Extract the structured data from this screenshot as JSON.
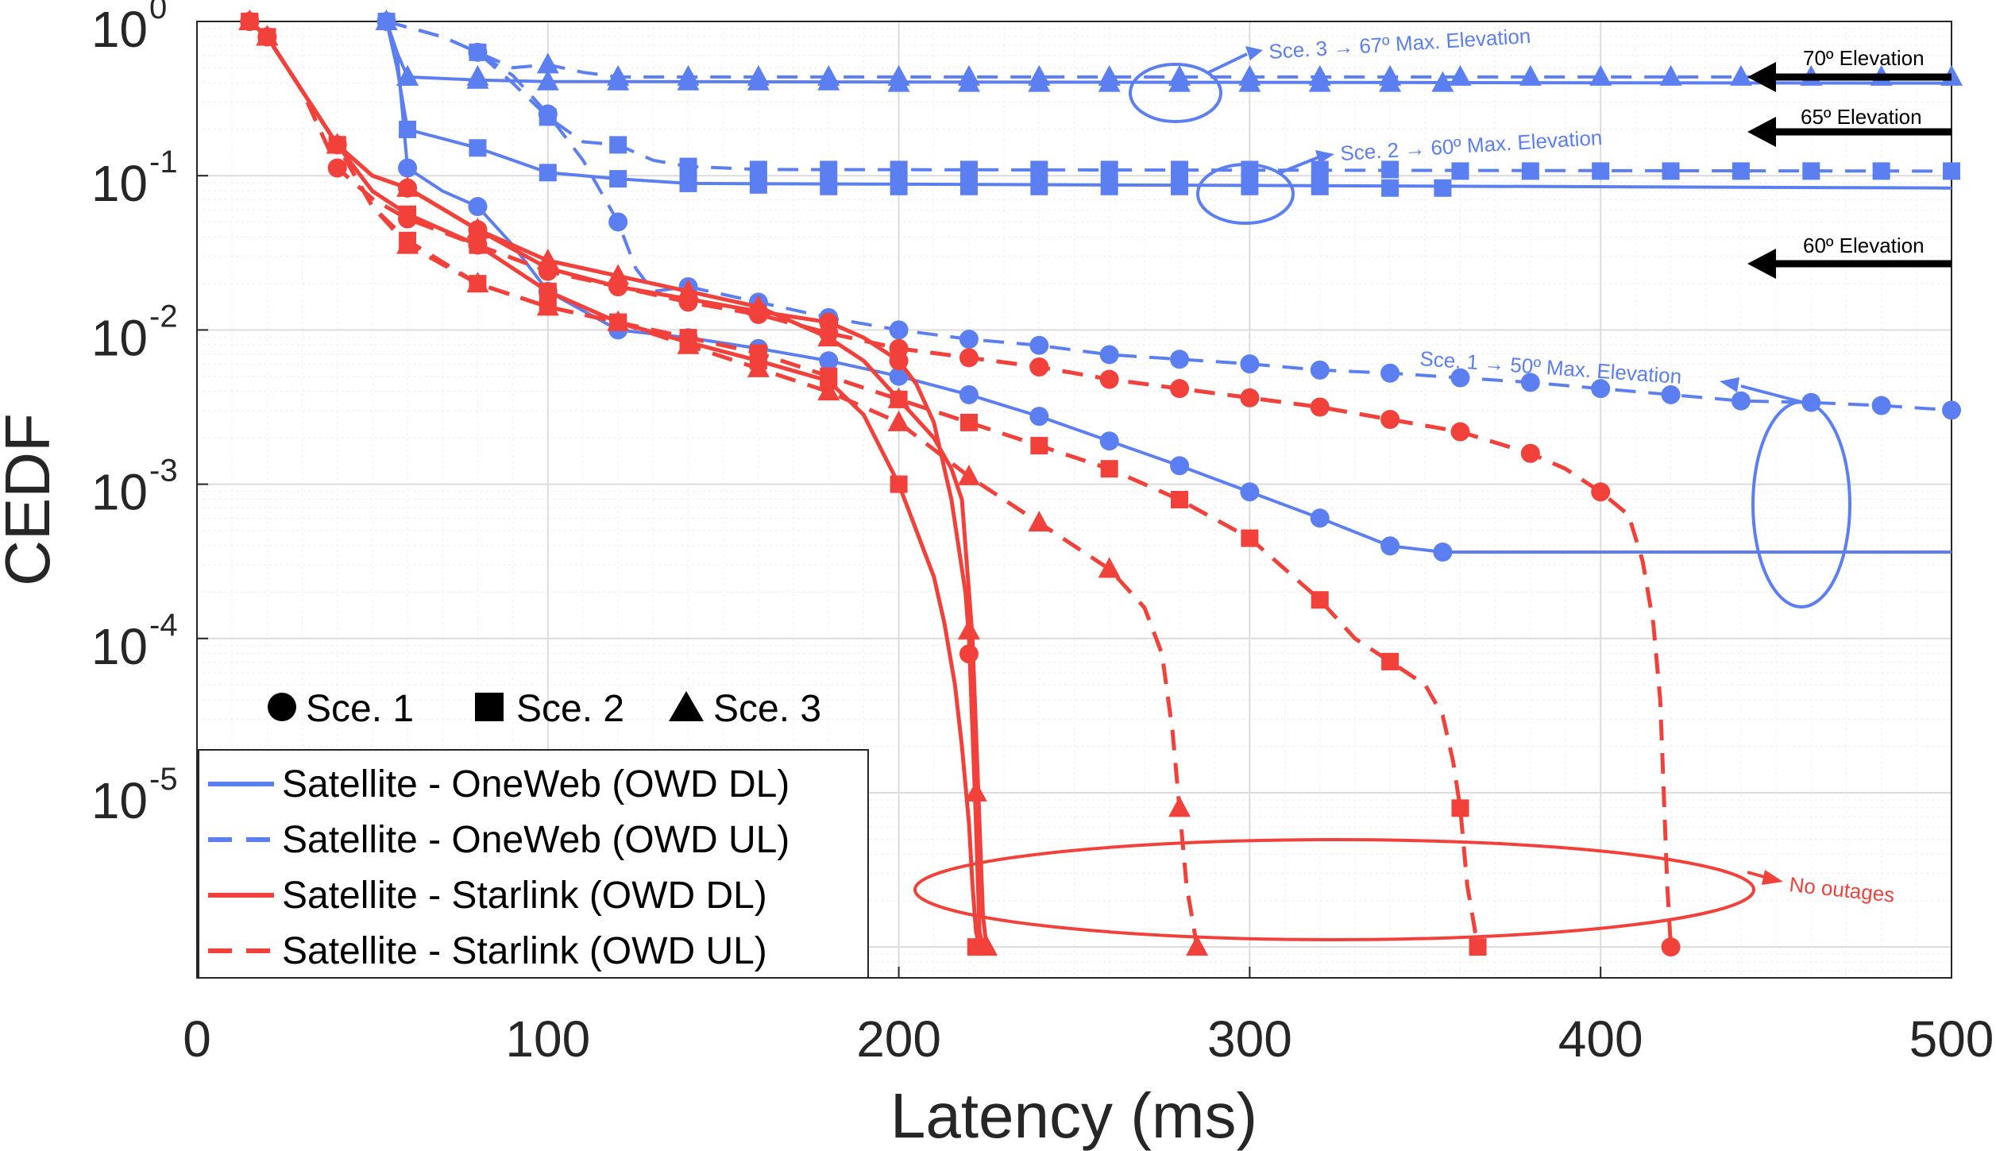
{
  "chart_data": {
    "type": "line",
    "xlabel": "Latency (ms)",
    "ylabel": "CEDF",
    "xlim": [
      0,
      500
    ],
    "ylim_log10": [
      -6.2,
      0
    ],
    "y_scale": "log",
    "xticks": [
      0,
      100,
      200,
      300,
      400,
      500
    ],
    "xtick_labels": [
      "0",
      "100",
      "200",
      "300",
      "400",
      "500"
    ],
    "yticks": [
      {
        "base": "10",
        "exp": "0",
        "value": 0
      },
      {
        "base": "10",
        "exp": "-1",
        "value": -1
      },
      {
        "base": "10",
        "exp": "-2",
        "value": -2
      },
      {
        "base": "10",
        "exp": "-3",
        "value": -3
      },
      {
        "base": "10",
        "exp": "-4",
        "value": -4
      },
      {
        "base": "10",
        "exp": "-5",
        "value": -5
      }
    ],
    "grid": true,
    "colors": {
      "oneweb": "#5b7ff0",
      "starlink": "#f2413a",
      "annotation": "#000000"
    },
    "legend": {
      "position": "bottom-left",
      "entries": [
        {
          "label": "Satellite - OneWeb (OWD DL)",
          "color": "#5b7ff0",
          "dash": "solid"
        },
        {
          "label": "Satellite - OneWeb (OWD UL)",
          "color": "#5b7ff0",
          "dash": "dashed"
        },
        {
          "label": "Satellite - Starlink (OWD DL)",
          "color": "#f2413a",
          "dash": "solid"
        },
        {
          "label": "Satellite - Starlink (OWD UL)",
          "color": "#f2413a",
          "dash": "dashed"
        }
      ]
    },
    "marker_legend": [
      {
        "marker": "circle",
        "label": "Sce. 1"
      },
      {
        "marker": "square",
        "label": "Sce. 2"
      },
      {
        "marker": "triangle",
        "label": "Sce. 3"
      }
    ],
    "series": [
      {
        "name": "OneWeb DL Sce. 1",
        "operator": "oneweb",
        "dash": "solid",
        "marker": "circle",
        "width": 4,
        "x": [
          54,
          57,
          60,
          70,
          80,
          90,
          100,
          120,
          140,
          160,
          180,
          200,
          220,
          240,
          260,
          280,
          300,
          320,
          340,
          355,
          500
        ],
        "y": [
          0,
          -0.2,
          -0.95,
          -1.1,
          -1.2,
          -1.45,
          -1.75,
          -2.0,
          -2.05,
          -2.12,
          -2.2,
          -2.3,
          -2.42,
          -2.56,
          -2.72,
          -2.88,
          -3.05,
          -3.22,
          -3.4,
          -3.44,
          -3.44
        ],
        "mx": [
          60,
          80,
          100,
          120,
          140,
          160,
          180,
          200,
          220,
          240,
          260,
          280,
          300,
          320,
          340,
          355
        ],
        "my": [
          -0.95,
          -1.2,
          -1.75,
          -2.0,
          -2.05,
          -2.12,
          -2.2,
          -2.3,
          -2.42,
          -2.56,
          -2.72,
          -2.88,
          -3.05,
          -3.22,
          -3.4,
          -3.44
        ]
      },
      {
        "name": "OneWeb DL Sce. 2",
        "operator": "oneweb",
        "dash": "solid",
        "marker": "square",
        "width": 4,
        "x": [
          54,
          57,
          60,
          80,
          100,
          120,
          140,
          500
        ],
        "y": [
          0,
          -0.3,
          -0.7,
          -0.82,
          -0.98,
          -1.02,
          -1.05,
          -1.08
        ],
        "mx": [
          60,
          80,
          100,
          120,
          140,
          160,
          180,
          200,
          220,
          240,
          260,
          280,
          300,
          320,
          340,
          355
        ],
        "my": [
          -0.7,
          -0.82,
          -0.98,
          -1.02,
          -1.05,
          -1.06,
          -1.07,
          -1.07,
          -1.07,
          -1.07,
          -1.07,
          -1.07,
          -1.07,
          -1.07,
          -1.08,
          -1.08
        ]
      },
      {
        "name": "OneWeb DL Sce. 3",
        "operator": "oneweb",
        "dash": "solid",
        "marker": "triangle",
        "width": 4,
        "x": [
          54,
          57,
          60,
          80,
          100,
          500
        ],
        "y": [
          0,
          -0.2,
          -0.36,
          -0.38,
          -0.39,
          -0.4
        ],
        "mx": [
          54,
          60,
          80,
          100,
          120,
          140,
          160,
          180,
          200,
          220,
          240,
          260,
          280,
          300,
          320,
          340,
          355
        ],
        "my": [
          0,
          -0.36,
          -0.38,
          -0.39,
          -0.39,
          -0.39,
          -0.39,
          -0.39,
          -0.4,
          -0.4,
          -0.4,
          -0.4,
          -0.4,
          -0.4,
          -0.4,
          -0.4,
          -0.4
        ]
      },
      {
        "name": "OneWeb UL Sce. 1",
        "operator": "oneweb",
        "dash": "dashed",
        "marker": "circle",
        "width": 4,
        "x": [
          54,
          70,
          80,
          90,
          100,
          110,
          120,
          125,
          130,
          140,
          160,
          180,
          200,
          220,
          240,
          260,
          280,
          300,
          320,
          340,
          360,
          380,
          400,
          420,
          440,
          460,
          480,
          500
        ],
        "y": [
          0,
          -0.1,
          -0.2,
          -0.35,
          -0.6,
          -0.9,
          -1.3,
          -1.6,
          -1.75,
          -1.72,
          -1.82,
          -1.92,
          -2.0,
          -2.06,
          -2.1,
          -2.16,
          -2.19,
          -2.22,
          -2.26,
          -2.28,
          -2.31,
          -2.34,
          -2.38,
          -2.42,
          -2.46,
          -2.47,
          -2.49,
          -2.52
        ],
        "mx": [
          54,
          80,
          100,
          120,
          140,
          160,
          180,
          200,
          220,
          240,
          260,
          280,
          300,
          320,
          340,
          360,
          380,
          400,
          420,
          440,
          460,
          480,
          500
        ],
        "my": [
          0,
          -0.2,
          -0.6,
          -1.3,
          -1.72,
          -1.82,
          -1.92,
          -2.0,
          -2.06,
          -2.1,
          -2.16,
          -2.19,
          -2.22,
          -2.26,
          -2.28,
          -2.31,
          -2.34,
          -2.38,
          -2.42,
          -2.46,
          -2.47,
          -2.49,
          -2.52
        ]
      },
      {
        "name": "OneWeb UL Sce. 2",
        "operator": "oneweb",
        "dash": "dashed",
        "marker": "square",
        "width": 4,
        "x": [
          54,
          70,
          80,
          90,
          100,
          110,
          120,
          130,
          140,
          160,
          500
        ],
        "y": [
          0,
          -0.1,
          -0.2,
          -0.4,
          -0.62,
          -0.78,
          -0.8,
          -0.9,
          -0.94,
          -0.96,
          -0.97
        ],
        "mx": [
          54,
          80,
          100,
          120,
          140,
          160,
          180,
          200,
          220,
          240,
          260,
          280,
          300,
          320,
          340,
          360,
          380,
          400,
          420,
          440,
          460,
          480,
          500
        ],
        "my": [
          0,
          -0.2,
          -0.62,
          -0.8,
          -0.94,
          -0.96,
          -0.96,
          -0.96,
          -0.96,
          -0.96,
          -0.96,
          -0.96,
          -0.96,
          -0.96,
          -0.96,
          -0.97,
          -0.97,
          -0.97,
          -0.97,
          -0.97,
          -0.97,
          -0.97,
          -0.97
        ]
      },
      {
        "name": "OneWeb UL Sce. 3",
        "operator": "oneweb",
        "dash": "dashed",
        "marker": "triangle",
        "width": 4,
        "x": [
          54,
          70,
          80,
          90,
          100,
          110,
          120,
          500
        ],
        "y": [
          0,
          -0.1,
          -0.2,
          -0.3,
          -0.28,
          -0.33,
          -0.36,
          -0.36
        ],
        "mx": [
          54,
          60,
          80,
          100,
          120,
          140,
          160,
          180,
          200,
          220,
          240,
          260,
          280,
          300,
          320,
          340,
          360,
          380,
          400,
          420,
          440,
          460,
          480,
          500
        ],
        "my": [
          0,
          -0.36,
          -0.36,
          -0.28,
          -0.36,
          -0.36,
          -0.36,
          -0.36,
          -0.36,
          -0.36,
          -0.36,
          -0.36,
          -0.36,
          -0.36,
          -0.36,
          -0.36,
          -0.36,
          -0.36,
          -0.36,
          -0.36,
          -0.36,
          -0.36,
          -0.36,
          -0.36
        ]
      },
      {
        "name": "Starlink DL Sce. 1",
        "operator": "starlink",
        "dash": "solid",
        "marker": "circle",
        "width": 5,
        "x": [
          15,
          20,
          30,
          40,
          50,
          60,
          80,
          100,
          120,
          140,
          160,
          180,
          190,
          200,
          205,
          210,
          212,
          215,
          217,
          219,
          220,
          221,
          222,
          223,
          224,
          225
        ],
        "y": [
          0,
          -0.1,
          -0.45,
          -0.8,
          -1.0,
          -1.08,
          -1.35,
          -1.6,
          -1.72,
          -1.8,
          -1.88,
          -1.95,
          -2.05,
          -2.2,
          -2.35,
          -2.6,
          -2.8,
          -3.1,
          -3.4,
          -3.7,
          -4.0,
          -4.6,
          -5.2,
          -5.9,
          -6.0,
          -6.05
        ],
        "mx": [
          15,
          20,
          40,
          60,
          80,
          100,
          120,
          140,
          160,
          180,
          200,
          220
        ],
        "my": [
          0,
          -0.1,
          -0.8,
          -1.08,
          -1.35,
          -1.6,
          -1.72,
          -1.8,
          -1.88,
          -1.95,
          -2.2,
          -4.1
        ]
      },
      {
        "name": "Starlink DL Sce. 2",
        "operator": "starlink",
        "dash": "solid",
        "marker": "square",
        "width": 5,
        "x": [
          15,
          20,
          30,
          40,
          50,
          60,
          80,
          100,
          120,
          140,
          160,
          180,
          190,
          200,
          205,
          210,
          213,
          216,
          218,
          220,
          221,
          222,
          223
        ],
        "y": [
          0,
          -0.1,
          -0.45,
          -0.8,
          -1.1,
          -1.25,
          -1.45,
          -1.75,
          -1.95,
          -2.08,
          -2.2,
          -2.33,
          -2.55,
          -3.0,
          -3.3,
          -3.6,
          -3.9,
          -4.3,
          -4.7,
          -5.2,
          -5.6,
          -5.9,
          -6.0
        ],
        "mx": [
          15,
          20,
          40,
          60,
          80,
          100,
          120,
          140,
          160,
          180,
          200,
          222
        ],
        "my": [
          0,
          -0.1,
          -0.8,
          -1.25,
          -1.45,
          -1.75,
          -1.95,
          -2.08,
          -2.2,
          -2.33,
          -3.0,
          -6.0
        ]
      },
      {
        "name": "Starlink DL Sce. 3",
        "operator": "starlink",
        "dash": "solid",
        "marker": "triangle",
        "width": 5,
        "x": [
          15,
          20,
          30,
          40,
          50,
          60,
          80,
          100,
          120,
          140,
          160,
          180,
          190,
          200,
          210,
          215,
          218,
          219,
          220,
          221,
          222,
          223,
          224,
          225
        ],
        "y": [
          0,
          -0.1,
          -0.45,
          -0.8,
          -1.0,
          -1.08,
          -1.35,
          -1.55,
          -1.65,
          -1.75,
          -1.85,
          -2.05,
          -2.2,
          -2.45,
          -2.7,
          -2.9,
          -3.1,
          -3.4,
          -3.7,
          -4.0,
          -4.6,
          -5.2,
          -5.8,
          -6.0
        ],
        "mx": [
          15,
          20,
          40,
          60,
          80,
          100,
          120,
          140,
          160,
          180,
          200,
          220,
          222,
          225
        ],
        "my": [
          0,
          -0.1,
          -0.8,
          -1.08,
          -1.35,
          -1.55,
          -1.65,
          -1.75,
          -1.85,
          -2.05,
          -2.45,
          -3.95,
          -5.0,
          -6.0
        ]
      },
      {
        "name": "Starlink UL Sce. 1",
        "operator": "starlink",
        "dash": "dashed",
        "marker": "circle",
        "width": 5,
        "x": [
          15,
          20,
          30,
          40,
          50,
          60,
          80,
          100,
          120,
          140,
          160,
          180,
          200,
          220,
          240,
          260,
          280,
          300,
          320,
          340,
          360,
          380,
          390,
          400,
          408,
          412,
          415,
          417,
          418,
          419,
          420
        ],
        "y": [
          0,
          -0.1,
          -0.45,
          -0.95,
          -1.15,
          -1.28,
          -1.45,
          -1.62,
          -1.72,
          -1.82,
          -1.9,
          -2.02,
          -2.12,
          -2.18,
          -2.24,
          -2.32,
          -2.38,
          -2.44,
          -2.5,
          -2.58,
          -2.66,
          -2.8,
          -2.9,
          -3.05,
          -3.2,
          -3.5,
          -3.9,
          -4.4,
          -5.0,
          -5.6,
          -6.0
        ],
        "mx": [
          15,
          20,
          40,
          60,
          80,
          100,
          120,
          140,
          160,
          180,
          200,
          220,
          240,
          260,
          280,
          300,
          320,
          340,
          360,
          380,
          400,
          420
        ],
        "my": [
          0,
          -0.1,
          -0.95,
          -1.28,
          -1.45,
          -1.62,
          -1.72,
          -1.82,
          -1.9,
          -2.02,
          -2.12,
          -2.18,
          -2.24,
          -2.32,
          -2.38,
          -2.44,
          -2.5,
          -2.58,
          -2.66,
          -2.8,
          -3.05,
          -6.0
        ]
      },
      {
        "name": "Starlink UL Sce. 2",
        "operator": "starlink",
        "dash": "dashed",
        "marker": "square",
        "width": 5,
        "x": [
          15,
          20,
          30,
          40,
          50,
          60,
          80,
          100,
          120,
          140,
          160,
          180,
          200,
          220,
          240,
          260,
          270,
          280,
          300,
          320,
          330,
          340,
          350,
          355,
          358,
          360,
          362,
          365
        ],
        "y": [
          0,
          -0.1,
          -0.45,
          -0.8,
          -1.2,
          -1.42,
          -1.7,
          -1.85,
          -1.95,
          -2.05,
          -2.15,
          -2.3,
          -2.45,
          -2.6,
          -2.75,
          -2.9,
          -3.0,
          -3.1,
          -3.35,
          -3.75,
          -4.0,
          -4.15,
          -4.3,
          -4.5,
          -4.8,
          -5.1,
          -5.6,
          -6.0
        ],
        "mx": [
          15,
          20,
          40,
          60,
          80,
          100,
          120,
          140,
          160,
          180,
          200,
          220,
          240,
          260,
          280,
          300,
          320,
          340,
          360,
          365
        ],
        "my": [
          0,
          -0.1,
          -0.8,
          -1.42,
          -1.7,
          -1.85,
          -1.95,
          -2.05,
          -2.15,
          -2.3,
          -2.45,
          -2.6,
          -2.75,
          -2.9,
          -3.1,
          -3.35,
          -3.75,
          -4.15,
          -5.1,
          -6.0
        ]
      },
      {
        "name": "Starlink UL Sce. 3",
        "operator": "starlink",
        "dash": "dashed",
        "marker": "triangle",
        "width": 5,
        "x": [
          15,
          20,
          30,
          40,
          50,
          60,
          80,
          100,
          120,
          140,
          160,
          180,
          200,
          220,
          240,
          260,
          270,
          275,
          278,
          280,
          282,
          285
        ],
        "y": [
          0,
          -0.1,
          -0.45,
          -0.8,
          -1.2,
          -1.45,
          -1.7,
          -1.85,
          -1.95,
          -2.1,
          -2.25,
          -2.4,
          -2.6,
          -2.95,
          -3.25,
          -3.55,
          -3.8,
          -4.1,
          -4.6,
          -5.1,
          -5.6,
          -6.0
        ],
        "mx": [
          15,
          20,
          40,
          60,
          80,
          100,
          120,
          140,
          160,
          180,
          200,
          220,
          240,
          260,
          280,
          285
        ],
        "my": [
          0,
          -0.1,
          -0.8,
          -1.45,
          -1.7,
          -1.85,
          -1.95,
          -2.1,
          -2.25,
          -2.4,
          -2.6,
          -2.95,
          -3.25,
          -3.55,
          -5.1,
          -6.0
        ]
      }
    ],
    "annotations": [
      {
        "text": "Sce. 3 → 67º Max. Elevation",
        "operator": "oneweb"
      },
      {
        "text": "Sce. 2 → 60º Max. Elevation",
        "operator": "oneweb"
      },
      {
        "text": "Sce. 1 → 50º Max. Elevation",
        "operator": "oneweb"
      },
      {
        "text": "70º Elevation",
        "operator": "annotation"
      },
      {
        "text": "65º Elevation",
        "operator": "annotation"
      },
      {
        "text": "60º Elevation",
        "operator": "annotation"
      },
      {
        "text": "No outages",
        "operator": "starlink"
      }
    ]
  }
}
